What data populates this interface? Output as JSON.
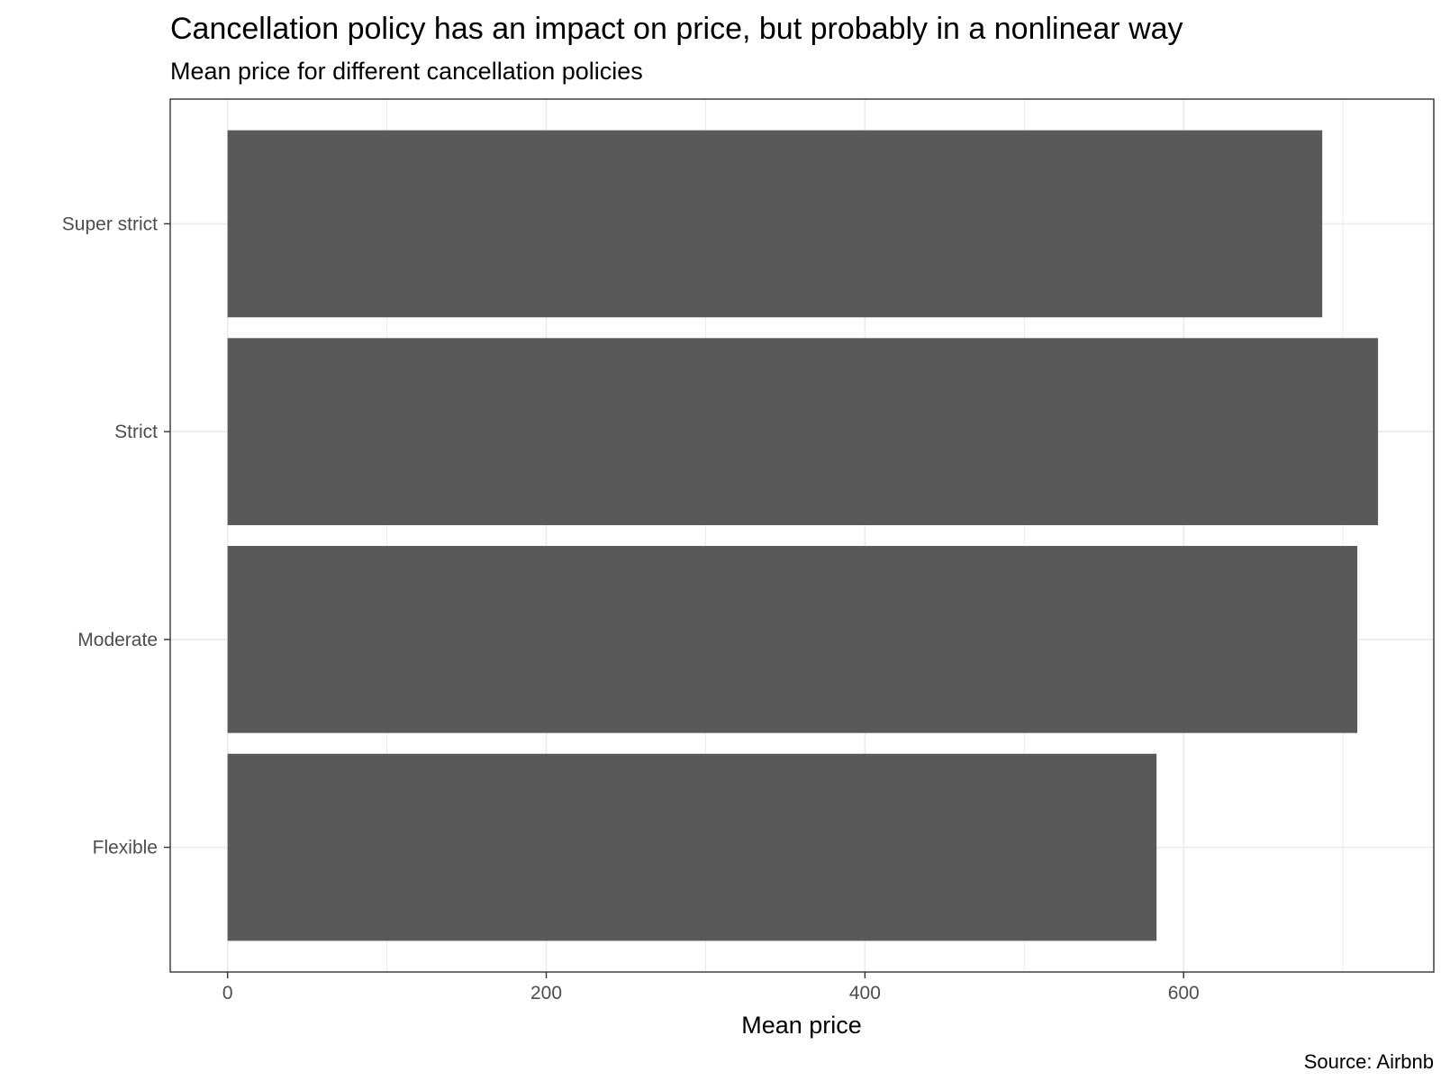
{
  "chart_data": {
    "type": "bar",
    "orientation": "horizontal",
    "title": "Cancellation policy has an impact on price, but probably in a nonlinear way",
    "subtitle": "Mean price for different cancellation policies",
    "categories": [
      "Flexible",
      "Moderate",
      "Strict",
      "Super strict"
    ],
    "values": [
      583,
      709,
      722,
      687
    ],
    "xlabel": "Mean price",
    "ylabel": "",
    "xlim": [
      -36,
      757
    ],
    "xticks": [
      0,
      200,
      400,
      600
    ],
    "caption": "Source: Airbnb",
    "grid": true,
    "legend": "none",
    "bar_color": "#595959",
    "grid_color": "#ebebeb",
    "panel_border_color": "#333333"
  }
}
